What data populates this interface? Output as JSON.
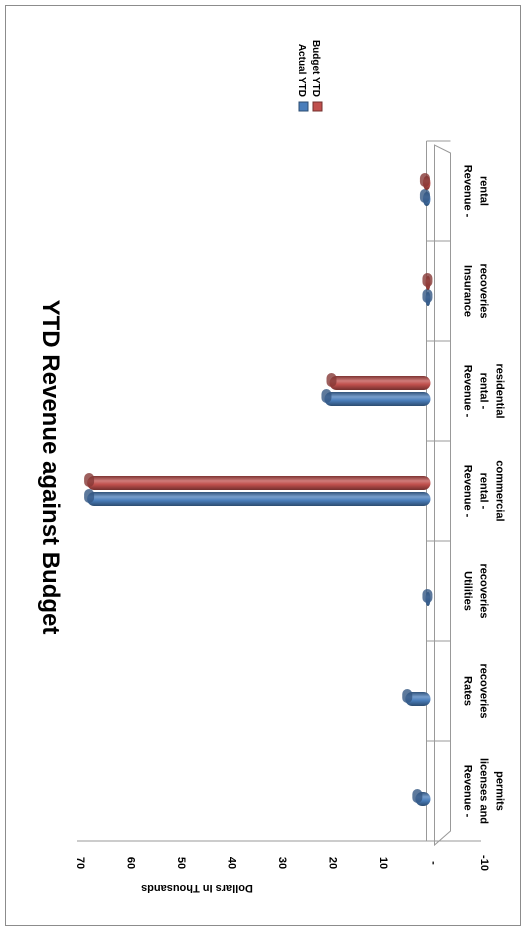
{
  "chart_data": {
    "type": "bar",
    "orientation": "rotated-90-clockwise",
    "title": "YTD Revenue against Budget",
    "ylabel": "Dollars In Thousands",
    "xlabel": "",
    "ylim": [
      -10,
      70
    ],
    "yticks": [
      "70",
      "60",
      "50",
      "40",
      "30",
      "20",
      "10",
      "-",
      "-10"
    ],
    "categories": [
      [
        "Revenue -",
        "rental"
      ],
      [
        "Insurance",
        "recoveries"
      ],
      [
        "Revenue -",
        "rental -",
        "residential"
      ],
      [
        "Revenue -",
        "rental -",
        "commercial"
      ],
      [
        "Utilities",
        "recoveries"
      ],
      [
        "Rates",
        "recoveries"
      ],
      [
        "Revenue -",
        "licenses and",
        "permits"
      ]
    ],
    "series": [
      {
        "name": "Actual YTD",
        "values": [
          1.5,
          1,
          21,
          68,
          1,
          5,
          3
        ],
        "color": "#4a7ebb"
      },
      {
        "name": "Budget YTD",
        "values": [
          1.5,
          1,
          20,
          68,
          0,
          0,
          0
        ],
        "color": "#c0504d"
      }
    ],
    "legend": "top-right",
    "grid": false
  }
}
